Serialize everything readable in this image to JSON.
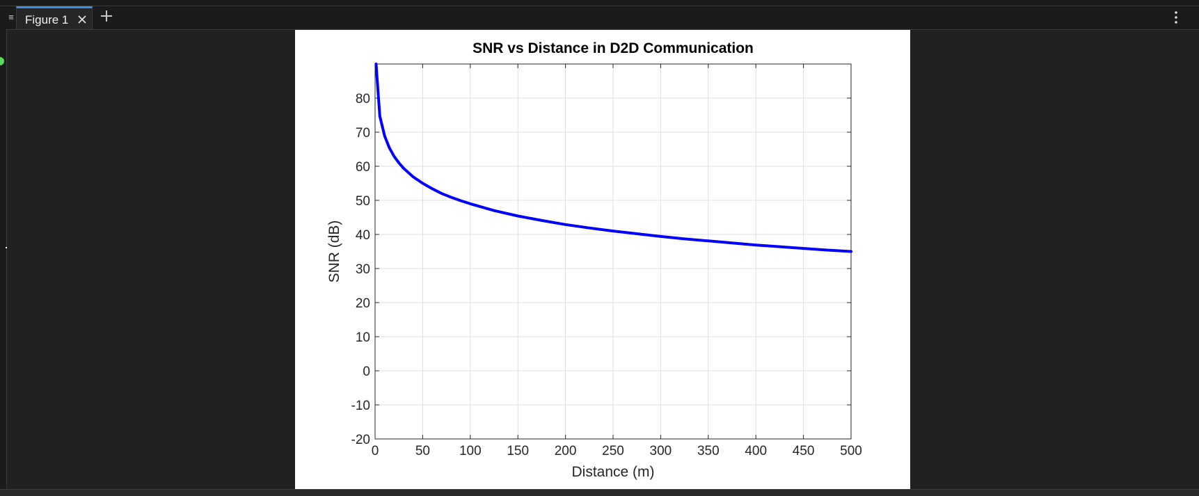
{
  "window": {
    "tabs": [
      {
        "label": "Figure 1",
        "active": true
      }
    ],
    "add_tab_icon": "plus-icon",
    "close_tab_icon": "close-icon",
    "more_icon": "vertical-ellipsis-icon",
    "panel_handle_icon": "panel-handle-icon",
    "accent_color": "#3a8ee6",
    "status_color": "#5cd65c"
  },
  "chart_data": {
    "type": "line",
    "title": "SNR vs Distance in D2D Communication",
    "xlabel": "Distance (m)",
    "ylabel": "SNR (dB)",
    "xlim": [
      0,
      500
    ],
    "ylim": [
      -20,
      90
    ],
    "xticks": [
      0,
      50,
      100,
      150,
      200,
      250,
      300,
      350,
      400,
      450,
      500
    ],
    "yticks": [
      -20,
      -10,
      0,
      10,
      20,
      30,
      40,
      50,
      60,
      70,
      80
    ],
    "grid": true,
    "legend": "none",
    "series": [
      {
        "color": "#0000ff",
        "x": [
          1,
          5,
          10,
          15,
          20,
          25,
          30,
          40,
          50,
          60,
          70,
          80,
          90,
          100,
          125,
          150,
          175,
          200,
          225,
          250,
          275,
          300,
          325,
          350,
          375,
          400,
          425,
          450,
          475,
          500
        ],
        "values": [
          90,
          74.7,
          68.9,
          65.4,
          62.9,
          61.0,
          59.4,
          56.9,
          55.0,
          53.4,
          52.0,
          50.9,
          49.9,
          49.0,
          47.0,
          45.4,
          44.1,
          42.9,
          41.9,
          41.0,
          40.2,
          39.4,
          38.7,
          38.1,
          37.5,
          36.9,
          36.4,
          35.9,
          35.4,
          35.0
        ]
      }
    ]
  }
}
